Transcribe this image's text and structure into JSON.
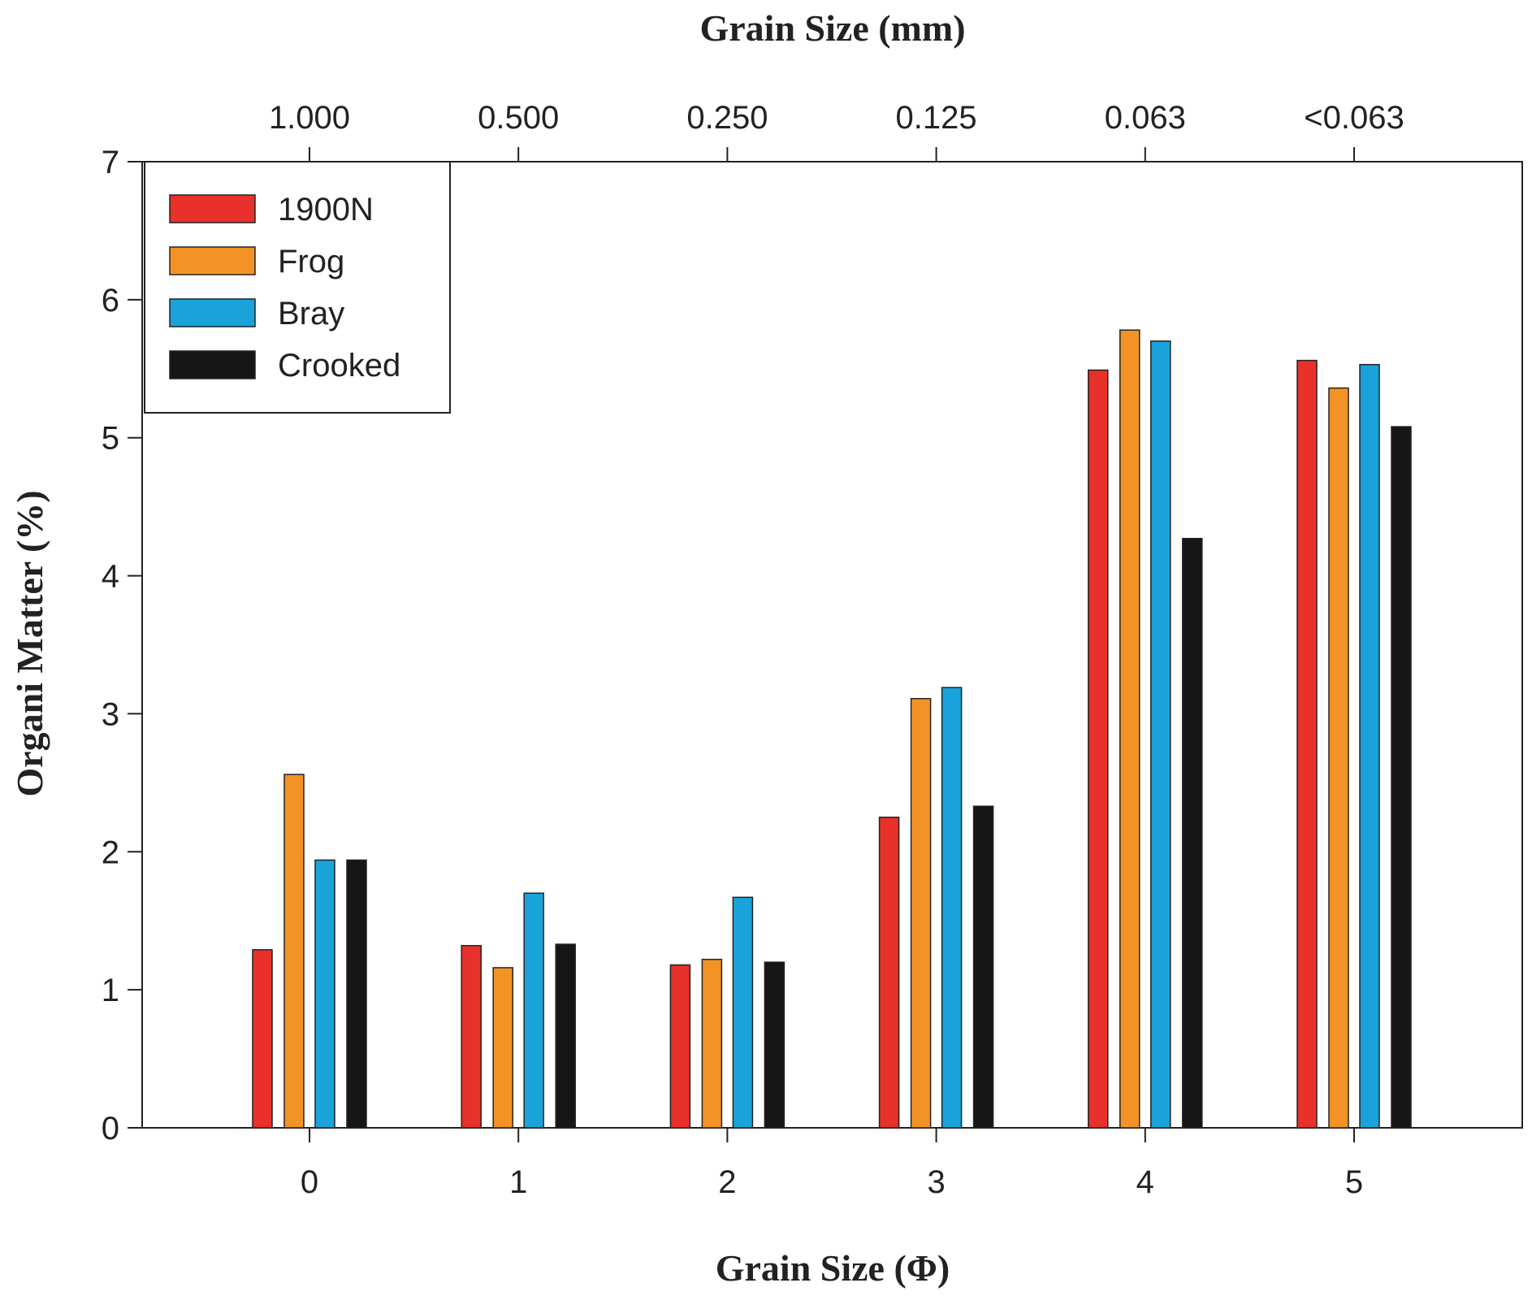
{
  "chart_data": {
    "type": "bar",
    "title": "",
    "xlabel": "Grain Size (Φ)",
    "x2label": "Grain Size (mm)",
    "ylabel": "Organi Matter (%)",
    "categories": [
      "0",
      "1",
      "2",
      "3",
      "4",
      "5"
    ],
    "top_categories": [
      "1.000",
      "0.500",
      "0.250",
      "0.125",
      "0.063",
      "<0.063"
    ],
    "ylim": [
      0,
      7
    ],
    "yticks": [
      "0",
      "1",
      "2",
      "3",
      "4",
      "5",
      "6",
      "7"
    ],
    "grid": false,
    "legend_position": "top-left",
    "series": [
      {
        "name": "1900N",
        "color": "#e8312a",
        "values": [
          1.29,
          1.32,
          1.18,
          2.25,
          5.49,
          5.56
        ]
      },
      {
        "name": "Frog",
        "color": "#f39325",
        "values": [
          2.56,
          1.16,
          1.22,
          3.11,
          5.78,
          5.36
        ]
      },
      {
        "name": "Bray",
        "color": "#1aa3db",
        "values": [
          1.94,
          1.7,
          1.67,
          3.19,
          5.7,
          5.53
        ]
      },
      {
        "name": "Crooked",
        "color": "#161616",
        "values": [
          1.94,
          1.33,
          1.2,
          2.33,
          4.27,
          5.08
        ]
      }
    ]
  }
}
